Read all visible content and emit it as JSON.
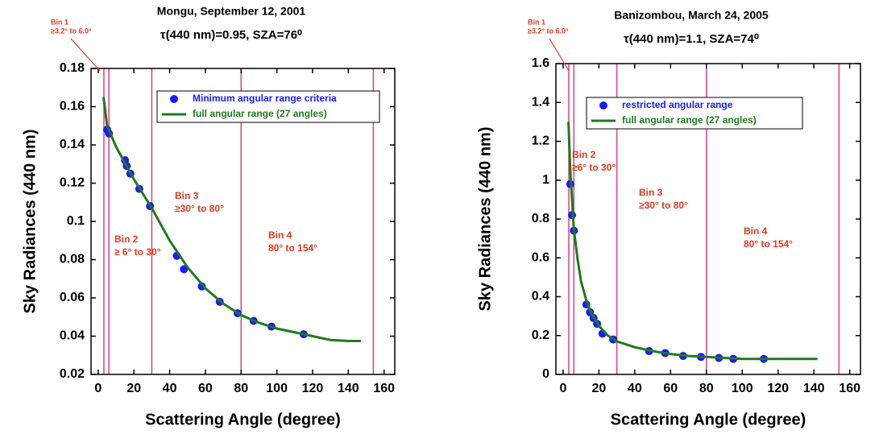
{
  "chart_data": [
    {
      "type": "scatter",
      "title": "Mongu, September 12, 2001",
      "subtitle": "τ(440 nm)=0.95, SZA=76⁰",
      "x_label": "Scattering Angle (degree)",
      "y_label": "Sky Radiances (440 nm)",
      "xlim": [
        -4,
        166
      ],
      "ylim": [
        0.02,
        0.18
      ],
      "xticks": [
        0,
        20,
        40,
        60,
        80,
        100,
        120,
        140,
        160
      ],
      "yticks": [
        0.02,
        0.04,
        0.06,
        0.08,
        0.1,
        0.12,
        0.14,
        0.16,
        0.18
      ],
      "vlines": [
        3.2,
        6,
        30,
        80,
        154
      ],
      "vline_color": "#e0407f",
      "annotations": [
        {
          "title": "Bin 1",
          "text": "≥3.2° to 6.0°"
        },
        {
          "title": "Bin 2",
          "text": "≥ 6° to 30°"
        },
        {
          "title": "Bin 3",
          "text": "≥30° to 80°"
        },
        {
          "title": "Bin 4",
          "text": "80° to 154°"
        }
      ],
      "series": [
        {
          "name": "Minimum angular range criteria",
          "style": "marker",
          "color": "#1a1aff",
          "x": [
            5,
            6,
            15,
            16,
            18,
            23,
            29,
            44,
            48,
            58,
            68,
            78,
            87,
            97,
            115
          ],
          "values": [
            0.148,
            0.146,
            0.132,
            0.129,
            0.125,
            0.117,
            0.108,
            0.082,
            0.075,
            0.066,
            0.058,
            0.052,
            0.048,
            0.045,
            0.041
          ]
        },
        {
          "name": "full angular range (27 angles)",
          "style": "line",
          "color": "#1f7a1f",
          "x": [
            3,
            5,
            10,
            20,
            30,
            40,
            50,
            60,
            70,
            80,
            90,
            100,
            110,
            120,
            130,
            140,
            147
          ],
          "values": [
            0.165,
            0.15,
            0.139,
            0.122,
            0.107,
            0.09,
            0.076,
            0.065,
            0.057,
            0.051,
            0.047,
            0.044,
            0.042,
            0.04,
            0.038,
            0.0375,
            0.0375
          ]
        }
      ]
    },
    {
      "type": "scatter",
      "title": "Banizombou, March 24, 2005",
      "subtitle": "τ(440 nm)=1.1, SZA=74⁰",
      "x_label": "Scattering Angle (degree)",
      "y_label": "Sky Radiances (440 nm)",
      "xlim": [
        -4,
        166
      ],
      "ylim": [
        0,
        1.6
      ],
      "xticks": [
        0,
        20,
        40,
        60,
        80,
        100,
        120,
        140,
        160
      ],
      "yticks": [
        0,
        0.2,
        0.4,
        0.6,
        0.8,
        1,
        1.2,
        1.4,
        1.6
      ],
      "vlines": [
        3.2,
        6,
        30,
        80,
        154
      ],
      "vline_color": "#e0407f",
      "annotations": [
        {
          "title": "Bin 1",
          "text": "≥3.2° to 6.0°"
        },
        {
          "title": "Bin 2",
          "text": "≥6° to 30°"
        },
        {
          "title": "Bin 3",
          "text": "≥30° to 80°"
        },
        {
          "title": "Bin 4",
          "text": "80° to 154°"
        }
      ],
      "series": [
        {
          "name": "restricted angular range",
          "style": "marker",
          "color": "#1a1aff",
          "x": [
            4,
            5,
            6,
            13,
            15,
            17,
            19,
            22,
            28,
            48,
            57,
            67,
            77,
            87,
            95,
            112
          ],
          "values": [
            0.98,
            0.82,
            0.74,
            0.36,
            0.32,
            0.29,
            0.26,
            0.21,
            0.18,
            0.12,
            0.11,
            0.095,
            0.09,
            0.085,
            0.08,
            0.08
          ]
        },
        {
          "name": "full angular range (27 angles)",
          "style": "line",
          "color": "#1f7a1f",
          "x": [
            3,
            4,
            5,
            6,
            8,
            10,
            13,
            16,
            20,
            25,
            30,
            40,
            50,
            60,
            70,
            80,
            90,
            100,
            120,
            142
          ],
          "values": [
            1.3,
            1.05,
            0.9,
            0.75,
            0.6,
            0.48,
            0.38,
            0.31,
            0.25,
            0.2,
            0.17,
            0.14,
            0.12,
            0.105,
            0.095,
            0.09,
            0.085,
            0.08,
            0.08,
            0.08
          ]
        }
      ]
    }
  ]
}
